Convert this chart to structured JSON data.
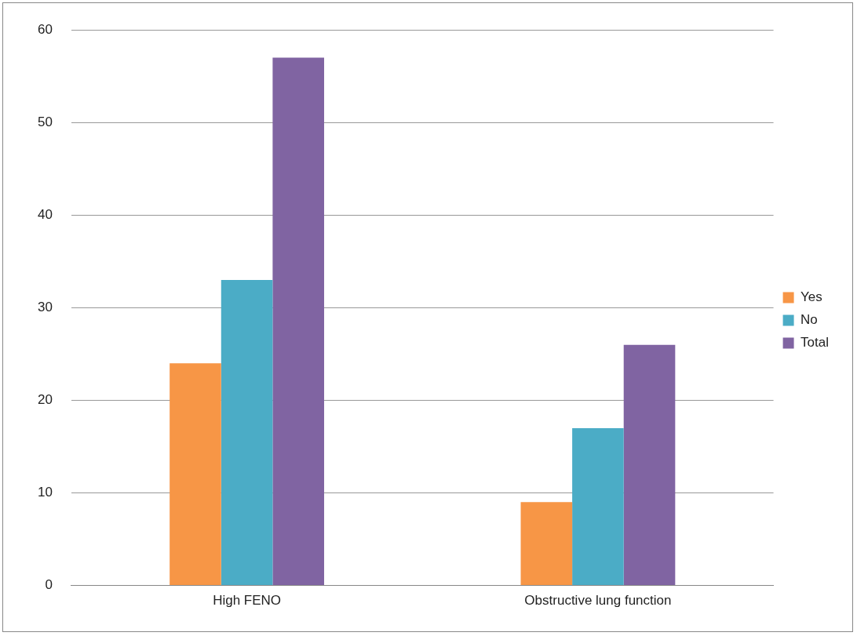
{
  "chart_data": {
    "type": "bar",
    "categories": [
      "High FENO",
      "Obstructive lung function"
    ],
    "series": [
      {
        "name": "Yes",
        "color": "#f79646",
        "values": [
          24,
          9
        ]
      },
      {
        "name": "No",
        "color": "#4bacc6",
        "values": [
          33,
          17
        ]
      },
      {
        "name": "Total",
        "color": "#8064a2",
        "values": [
          57,
          26
        ]
      }
    ],
    "ylim": [
      0,
      60
    ],
    "yticks": [
      0,
      10,
      20,
      30,
      40,
      50,
      60
    ],
    "grid": "y",
    "legend": "right"
  }
}
